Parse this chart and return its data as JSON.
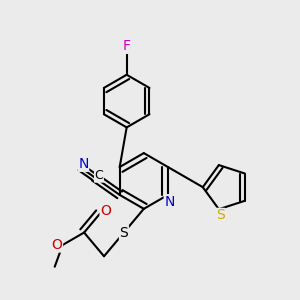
{
  "bg_color": "#ebebeb",
  "bond_color": "#000000",
  "bond_width": 1.5,
  "atom_colors": {
    "C": "#000000",
    "N": "#0000cc",
    "O": "#cc0000",
    "S_thio": "#ccaa00",
    "S_chain": "#000000",
    "F": "#cc00cc"
  },
  "font_size": 9
}
